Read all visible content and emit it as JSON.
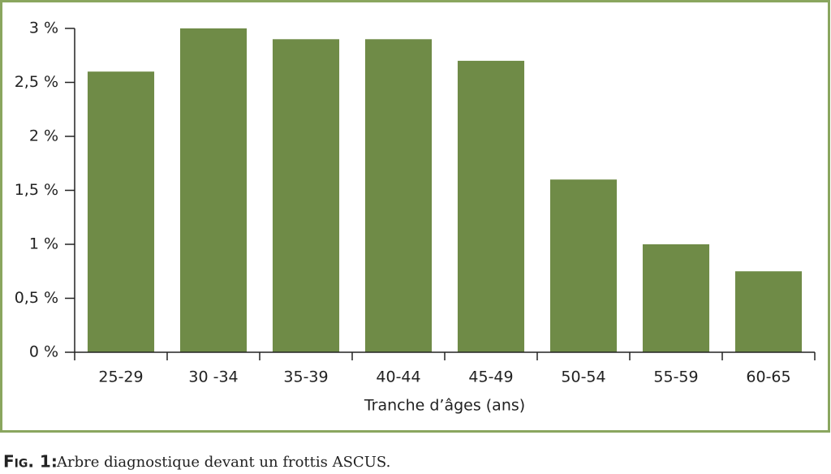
{
  "chart_data": {
    "type": "bar",
    "x_label": "Tranche d’âges (ans)",
    "categories": [
      "25-29",
      "30 -34",
      "35-39",
      "40-44",
      "45-49",
      "50-54",
      "55-59",
      "60-65"
    ],
    "values": [
      2.6,
      3.0,
      2.9,
      2.9,
      2.7,
      1.6,
      1.0,
      0.75
    ],
    "color": "#6f8b47",
    "ylim": [
      0,
      3
    ],
    "yticks": [
      {
        "value": 0,
        "label": "0 %"
      },
      {
        "value": 0.5,
        "label": "0,5 %"
      },
      {
        "value": 1,
        "label": "1 %"
      },
      {
        "value": 1.5,
        "label": "1,5 %"
      },
      {
        "value": 2,
        "label": "2 %"
      },
      {
        "value": 2.5,
        "label": "2,5 %"
      },
      {
        "value": 3,
        "label": "3 %"
      }
    ],
    "grid": false
  },
  "caption": {
    "label": "Fig. 1:",
    "text": "Arbre diagnostique devant un frottis ASCUS."
  }
}
